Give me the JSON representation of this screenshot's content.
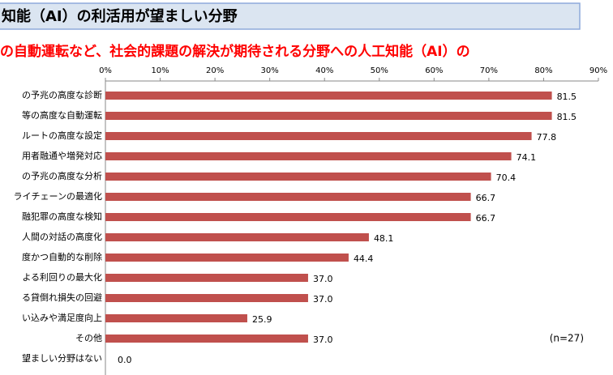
{
  "chart_data": {
    "type": "bar",
    "orientation": "horizontal",
    "title": "知能（AI）の利活用が望ましい分野",
    "subtitle": "の自動運転など、社会的課題の解決が期待される分野への人工知能（AI）の",
    "annotation": "(n=27)",
    "categories": [
      "の予兆の高度な診断",
      "等の高度な自動運転",
      "ルートの高度な設定",
      "用者融通や増発対応",
      "の予兆の高度な分析",
      "ライチェーンの最適化",
      "融犯罪の高度な検知",
      "人間の対話の高度化",
      "度かつ自動的な削除",
      "よる利回りの最大化",
      "る貸倒れ損失の回避",
      "い込みや満足度向上",
      "その他",
      "望ましい分野はない"
    ],
    "values": [
      81.5,
      81.5,
      77.8,
      74.1,
      70.4,
      66.7,
      66.7,
      48.1,
      44.4,
      37,
      37,
      25.9,
      37,
      0
    ],
    "value_labels": [
      "81.5",
      "81.5",
      "77.8",
      "74.1",
      "70.4",
      "66.7",
      "66.7",
      "48.1",
      "44.4",
      "37.0",
      "37.0",
      "25.9",
      "37.0",
      "0.0"
    ],
    "color": "#c0504d",
    "xlim": [
      0,
      90
    ],
    "xticks": [
      {
        "value": 0,
        "label": "0%"
      },
      {
        "value": 10,
        "label": "10%"
      },
      {
        "value": 20,
        "label": "20%"
      },
      {
        "value": 30,
        "label": "30%"
      },
      {
        "value": 40,
        "label": "40%"
      },
      {
        "value": 50,
        "label": "50%"
      },
      {
        "value": 60,
        "label": "60%"
      },
      {
        "value": 70,
        "label": "70%"
      },
      {
        "value": 80,
        "label": "80%"
      },
      {
        "value": 90,
        "label": "90%"
      }
    ]
  }
}
